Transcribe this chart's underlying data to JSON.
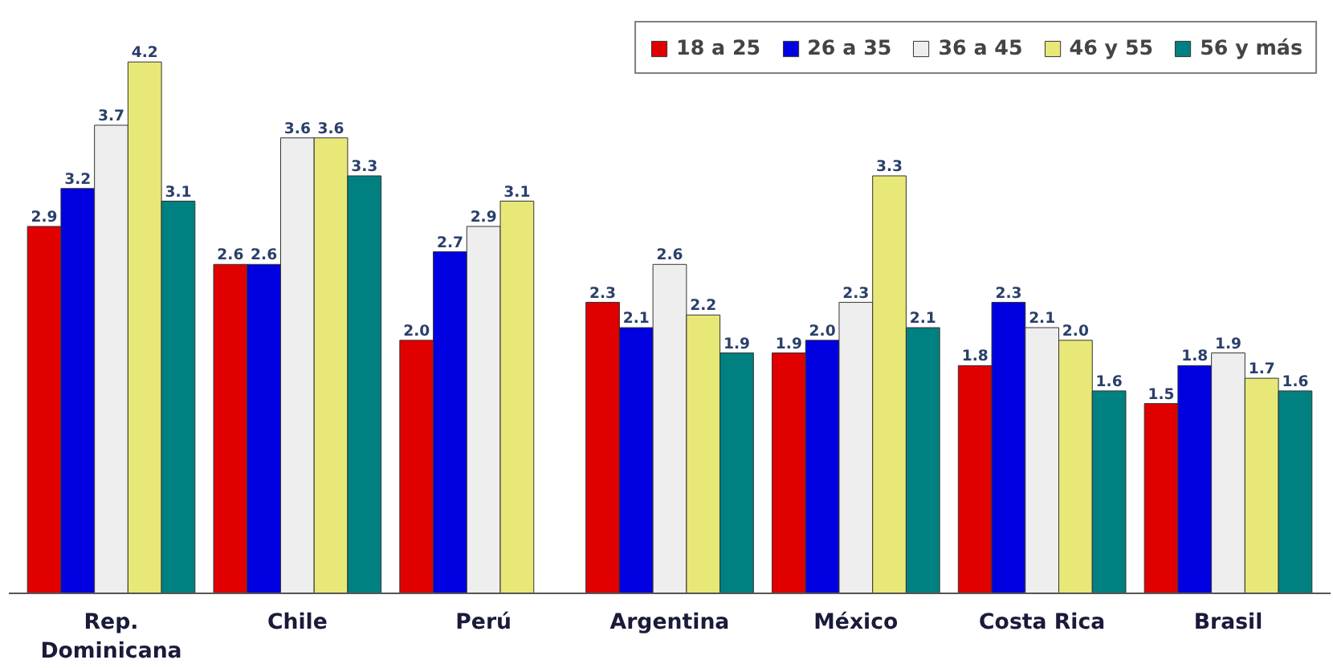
{
  "chart_data": {
    "type": "bar",
    "categories": [
      "Rep. Dominicana",
      "Chile",
      "Perú",
      "Argentina",
      "México",
      "Costa Rica",
      "Brasil"
    ],
    "series": [
      {
        "name": "18 a 25",
        "color": "#e00000",
        "values": [
          2.9,
          2.6,
          2.0,
          2.3,
          1.9,
          1.8,
          1.5
        ],
        "value_labels": [
          "2.9",
          "2.6",
          "2.0",
          "2.3",
          "1.9",
          "1.8",
          "1.5"
        ]
      },
      {
        "name": "26 a 35",
        "color": "#0000e0",
        "values": [
          3.2,
          2.6,
          2.7,
          2.1,
          2.0,
          2.3,
          1.8
        ],
        "value_labels": [
          "3.2",
          "2.6",
          "2.7",
          "2.1",
          "2.0",
          "2.3",
          "1.8"
        ]
      },
      {
        "name": "36 a 45",
        "color": "#eeeeee",
        "values": [
          3.7,
          3.6,
          2.9,
          2.6,
          2.3,
          2.1,
          1.9
        ],
        "value_labels": [
          "3.7",
          "3.6",
          "2.9",
          "2.6",
          "2.3",
          "2.1",
          "1.9"
        ]
      },
      {
        "name": "46 y 55",
        "color": "#e8e878",
        "values": [
          4.2,
          3.6,
          3.1,
          2.2,
          3.3,
          2.0,
          1.7
        ],
        "value_labels": [
          "4.2",
          "3.6",
          "3.1",
          "2.2",
          "3.3",
          "2.0",
          "1.7"
        ]
      },
      {
        "name": "56 y más",
        "color": "#008080",
        "values": [
          3.1,
          3.3,
          null,
          1.9,
          2.1,
          1.6,
          1.6
        ],
        "value_labels": [
          "3.1",
          "3.3",
          null,
          "1.9",
          "2.1",
          "1.6",
          "1.6"
        ]
      }
    ],
    "legend": "top right",
    "grid": false
  }
}
